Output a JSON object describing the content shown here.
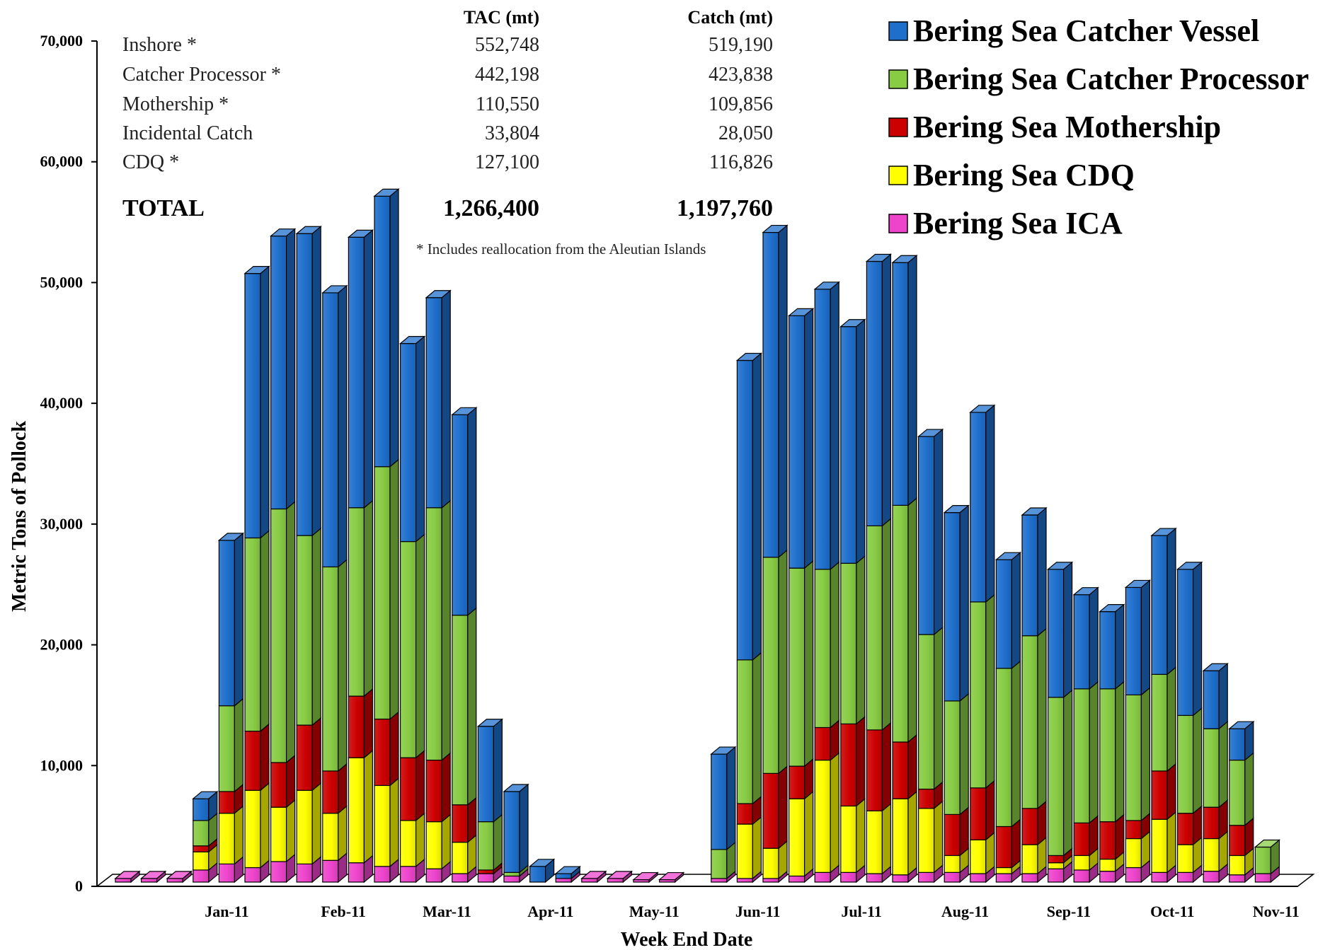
{
  "chart_data": {
    "type": "bar",
    "stacked": true,
    "three_d": true,
    "xlabel": "Week End Date",
    "ylabel": "Metric Tons of Pollock",
    "ylim": [
      0,
      70000
    ],
    "yticks": [
      0,
      10000,
      20000,
      30000,
      40000,
      50000,
      60000,
      70000
    ],
    "ytick_labels": [
      "0",
      "10,000",
      "20,000",
      "30,000",
      "40,000",
      "50,000",
      "60,000",
      "70,000"
    ],
    "month_labels": [
      {
        "label": "Jan-11",
        "at_week": 4
      },
      {
        "label": "Feb-11",
        "at_week": 8.5
      },
      {
        "label": "Mar-11",
        "at_week": 12.5
      },
      {
        "label": "Apr-11",
        "at_week": 16.5
      },
      {
        "label": "May-11",
        "at_week": 20.5
      },
      {
        "label": "Jun-11",
        "at_week": 24.5
      },
      {
        "label": "Jul-11",
        "at_week": 28.5
      },
      {
        "label": "Aug-11",
        "at_week": 32.5
      },
      {
        "label": "Sep-11",
        "at_week": 36.5
      },
      {
        "label": "Oct-11",
        "at_week": 40.5
      },
      {
        "label": "Nov-11",
        "at_week": 44.5
      }
    ],
    "legend_position": "top-right",
    "series": [
      {
        "name": "Bering Sea ICA",
        "color": "#ee44cc",
        "values": [
          300,
          300,
          300,
          1000,
          1500,
          1200,
          1700,
          1500,
          1800,
          1600,
          1300,
          1300,
          1100,
          700,
          700,
          500,
          0,
          300,
          300,
          300,
          200,
          200,
          0,
          300,
          300,
          300,
          500,
          800,
          800,
          700,
          600,
          800,
          800,
          700,
          700,
          700,
          1100,
          1000,
          900,
          1200,
          800,
          800,
          900,
          600,
          700
        ]
      },
      {
        "name": "Bering Sea CDQ",
        "color": "#ffff00",
        "values": [
          0,
          0,
          0,
          1500,
          4200,
          6400,
          4500,
          6100,
          3900,
          8700,
          6700,
          3800,
          3900,
          2600,
          0,
          0,
          0,
          0,
          0,
          0,
          0,
          0,
          0,
          0,
          4500,
          2500,
          6400,
          9300,
          5500,
          5200,
          6300,
          5300,
          1400,
          2800,
          500,
          2400,
          500,
          1200,
          1000,
          2400,
          4400,
          2300,
          2700,
          1600,
          0
        ]
      },
      {
        "name": "Bering Sea Mothership",
        "color": "#cc0000",
        "values": [
          0,
          0,
          0,
          500,
          1800,
          4900,
          3700,
          5400,
          3500,
          5100,
          5500,
          5200,
          5100,
          3100,
          300,
          0,
          0,
          0,
          0,
          0,
          0,
          0,
          0,
          0,
          1700,
          6200,
          2700,
          2700,
          6800,
          6700,
          4700,
          1600,
          3400,
          4300,
          3400,
          3000,
          600,
          2700,
          3100,
          1500,
          4000,
          2600,
          2600,
          2500,
          0
        ]
      },
      {
        "name": "Bering Sea Catcher Processor",
        "color": "#88cc44",
        "values": [
          0,
          0,
          0,
          2100,
          7100,
          16000,
          21000,
          15700,
          16900,
          15600,
          20900,
          17900,
          20900,
          15700,
          4000,
          300,
          0,
          0,
          0,
          0,
          0,
          0,
          0,
          2400,
          11900,
          17900,
          16400,
          13100,
          13300,
          16900,
          19600,
          12800,
          9400,
          15400,
          13100,
          14300,
          13100,
          11100,
          11000,
          10400,
          8000,
          8100,
          6500,
          5400,
          2200
        ]
      },
      {
        "name": "Bering Sea Catcher Vessel",
        "color": "#1e6fcc",
        "values": [
          0,
          0,
          0,
          1800,
          13700,
          21900,
          22600,
          25000,
          22700,
          22400,
          22400,
          16400,
          17400,
          16600,
          7900,
          6700,
          1300,
          400,
          0,
          0,
          0,
          0,
          0,
          7900,
          24800,
          26900,
          20900,
          23200,
          19600,
          21900,
          20100,
          16400,
          15600,
          15700,
          9000,
          10000,
          10600,
          7800,
          6400,
          8900,
          11500,
          12100,
          4800,
          2600,
          0
        ]
      }
    ]
  },
  "summary_table": {
    "headers": [
      "TAC (mt)",
      "Catch (mt)"
    ],
    "rows": [
      {
        "label": "Inshore *",
        "tac": "552,748",
        "catch": "519,190"
      },
      {
        "label": "Catcher Processor *",
        "tac": "442,198",
        "catch": "423,838"
      },
      {
        "label": "Mothership *",
        "tac": "110,550",
        "catch": "109,856"
      },
      {
        "label": "Incidental Catch",
        "tac": "33,804",
        "catch": "28,050"
      },
      {
        "label": "CDQ *",
        "tac": "127,100",
        "catch": "116,826"
      }
    ],
    "total": {
      "label": "TOTAL",
      "tac": "1,266,400",
      "catch": "1,197,760"
    },
    "note": "* Includes reallocation from the Aleutian Islands"
  }
}
